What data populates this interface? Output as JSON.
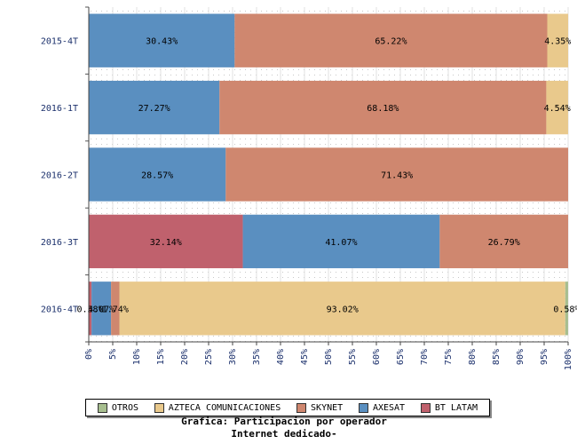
{
  "chart_data": {
    "type": "bar",
    "orientation": "horizontal",
    "stacked": "percent",
    "title": "Grafica: Participacion por operador",
    "subtitle": "Internet dedicado-",
    "categories": [
      "2015-4T",
      "2016-1T",
      "2016-2T",
      "2016-3T",
      "2016-4T"
    ],
    "series": [
      {
        "name": "BT LATAM",
        "color": "#c0616d",
        "values": [
          0,
          0,
          0,
          32.14,
          0.58
        ],
        "labels": [
          "",
          "",
          "",
          "32.14%",
          "0.58%"
        ]
      },
      {
        "name": "AXESAT",
        "color": "#5a8fc0",
        "values": [
          30.43,
          27.27,
          28.57,
          41.07,
          4.07
        ],
        "labels": [
          "30.43%",
          "27.27%",
          "28.57%",
          "41.07%",
          "4.07%"
        ]
      },
      {
        "name": "SKYNET",
        "color": "#cf876f",
        "values": [
          65.22,
          68.18,
          71.43,
          26.79,
          1.74
        ],
        "labels": [
          "65.22%",
          "68.18%",
          "71.43%",
          "26.79%",
          "1.74%"
        ]
      },
      {
        "name": "AZTECA COMUNICACIONES",
        "color": "#e9c98c",
        "values": [
          4.35,
          4.54,
          0,
          0,
          93.02
        ],
        "labels": [
          "4.35%",
          "4.54%",
          "",
          "",
          "93.02%"
        ]
      },
      {
        "name": "OTROS",
        "color": "#a7be8f",
        "values": [
          0,
          0,
          0,
          0,
          0.58
        ],
        "labels": [
          "",
          "",
          "",
          "",
          "0.58%"
        ]
      }
    ],
    "xlim": [
      0,
      100
    ],
    "xticks": [
      "0%",
      "5%",
      "10%",
      "15%",
      "20%",
      "25%",
      "30%",
      "35%",
      "40%",
      "45%",
      "50%",
      "55%",
      "60%",
      "65%",
      "70%",
      "75%",
      "80%",
      "85%",
      "90%",
      "95%",
      "100%"
    ],
    "grid": true,
    "legend_position": "bottom",
    "legend_order": [
      "OTROS",
      "AZTECA COMUNICACIONES",
      "SKYNET",
      "AXESAT",
      "BT LATAM"
    ]
  }
}
